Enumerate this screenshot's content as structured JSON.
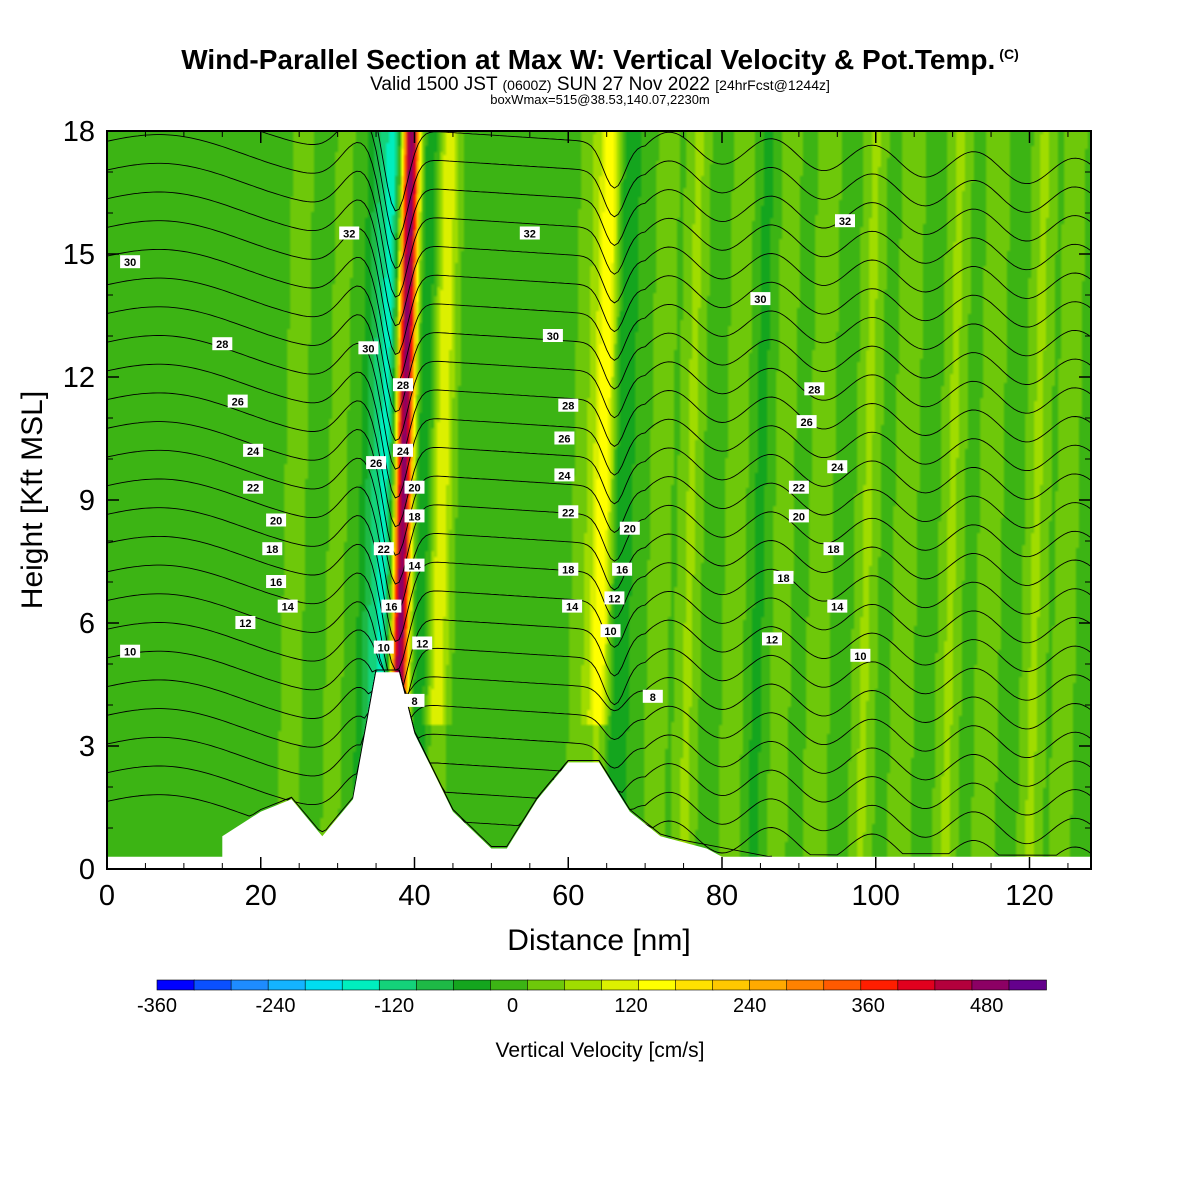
{
  "chart_data": {
    "type": "heatmap",
    "title": "Wind-Parallel Section at Max W: Vertical Velocity & Pot.Temp.",
    "copyright_mark": "(C)",
    "subtitle_a": "Valid 1500 JST",
    "subtitle_utc": "(0600Z)",
    "subtitle_b": "SUN 27 Nov 2022",
    "subtitle_fcst": "[24hrFcst@1244z]",
    "subtitle2": "boxWmax=515@38.53,140.07,2230m",
    "xlabel": "Distance [nm]",
    "ylabel": "Height [Kft MSL]",
    "xlim": [
      0,
      128
    ],
    "ylim": [
      0,
      18
    ],
    "x_ticks": [
      0,
      20,
      40,
      60,
      80,
      100,
      120
    ],
    "y_ticks": [
      0,
      3,
      6,
      9,
      12,
      15,
      18
    ],
    "colorbar": {
      "label": "Vertical Velocity [cm/s]",
      "range": [
        -360,
        540
      ],
      "tick_labels": [
        "-360",
        "-240",
        "-120",
        "0",
        "120",
        "240",
        "360",
        "480"
      ],
      "tick_values": [
        -360,
        -240,
        -120,
        0,
        120,
        240,
        360,
        480
      ],
      "colors": [
        "#0000ff",
        "#0a50ff",
        "#1e8cff",
        "#14b4ff",
        "#00dcf0",
        "#00eebe",
        "#14d27a",
        "#1eb946",
        "#14a51e",
        "#3cb414",
        "#6ec80a",
        "#a0dc00",
        "#dcf000",
        "#ffff00",
        "#ffe100",
        "#ffc800",
        "#ffaa00",
        "#ff8200",
        "#ff5a00",
        "#ff1e00",
        "#e1001e",
        "#b4003c",
        "#8c0064",
        "#64008c"
      ]
    },
    "terrain_kft": [
      [
        0,
        0.3
      ],
      [
        15,
        0.3
      ],
      [
        15,
        0.8
      ],
      [
        20,
        1.4
      ],
      [
        24,
        1.7
      ],
      [
        28,
        0.8
      ],
      [
        32,
        1.7
      ],
      [
        35,
        4.8
      ],
      [
        38,
        4.8
      ],
      [
        40,
        3.3
      ],
      [
        45,
        1.4
      ],
      [
        50,
        0.5
      ],
      [
        52,
        0.5
      ],
      [
        56,
        1.7
      ],
      [
        60,
        2.6
      ],
      [
        64,
        2.6
      ],
      [
        68,
        1.4
      ],
      [
        72,
        0.8
      ],
      [
        78,
        0.5
      ],
      [
        80,
        0.3
      ],
      [
        128,
        0.3
      ]
    ],
    "w_features": [
      {
        "x": 38.5,
        "w": 520
      },
      {
        "x": 36.5,
        "w": -150
      },
      {
        "x": 34.5,
        "w": -80
      },
      {
        "x": 41,
        "w": -60
      },
      {
        "x": 43.5,
        "w": 120
      },
      {
        "x": 64.5,
        "w": 160
      },
      {
        "x": 67,
        "w": -60
      },
      {
        "x": 62,
        "w": 40
      },
      {
        "x": 24.5,
        "w": 40
      },
      {
        "x": 30,
        "w": 30
      },
      {
        "x": 72,
        "w": 40
      },
      {
        "x": 76,
        "w": 60
      },
      {
        "x": 82,
        "w": 50
      },
      {
        "x": 85,
        "w": -30
      },
      {
        "x": 88,
        "w": 40
      },
      {
        "x": 93,
        "w": 50
      },
      {
        "x": 99,
        "w": 60
      },
      {
        "x": 104,
        "w": 50
      },
      {
        "x": 110,
        "w": 60
      },
      {
        "x": 115,
        "w": 50
      },
      {
        "x": 121,
        "w": 60
      },
      {
        "x": 125,
        "w": 40
      }
    ],
    "theta_levels": [
      8,
      10,
      12,
      14,
      16,
      18,
      20,
      22,
      24,
      26,
      28,
      30,
      32
    ],
    "theta_labels": [
      {
        "text": "30",
        "x": 3,
        "y": 14.8
      },
      {
        "text": "32",
        "x": 31.5,
        "y": 15.5
      },
      {
        "text": "28",
        "x": 15,
        "y": 12.8
      },
      {
        "text": "30",
        "x": 34,
        "y": 12.7
      },
      {
        "text": "26",
        "x": 17,
        "y": 11.4
      },
      {
        "text": "28",
        "x": 38.5,
        "y": 11.8
      },
      {
        "text": "24",
        "x": 19,
        "y": 10.2
      },
      {
        "text": "26",
        "x": 35,
        "y": 9.9
      },
      {
        "text": "24",
        "x": 38.5,
        "y": 10.2
      },
      {
        "text": "22",
        "x": 19,
        "y": 9.3
      },
      {
        "text": "20",
        "x": 40,
        "y": 9.3
      },
      {
        "text": "20",
        "x": 22,
        "y": 8.5
      },
      {
        "text": "18",
        "x": 40,
        "y": 8.6
      },
      {
        "text": "22",
        "x": 36,
        "y": 7.8
      },
      {
        "text": "18",
        "x": 21.5,
        "y": 7.8
      },
      {
        "text": "14",
        "x": 40,
        "y": 7.4
      },
      {
        "text": "16",
        "x": 22,
        "y": 7.0
      },
      {
        "text": "16",
        "x": 37,
        "y": 6.4
      },
      {
        "text": "14",
        "x": 23.5,
        "y": 6.4
      },
      {
        "text": "12",
        "x": 18,
        "y": 6.0
      },
      {
        "text": "12",
        "x": 41,
        "y": 5.5
      },
      {
        "text": "10",
        "x": 3,
        "y": 5.3
      },
      {
        "text": "10",
        "x": 36,
        "y": 5.4
      },
      {
        "text": "8",
        "x": 40,
        "y": 4.1
      },
      {
        "text": "32",
        "x": 55,
        "y": 15.5
      },
      {
        "text": "30",
        "x": 58,
        "y": 13.0
      },
      {
        "text": "28",
        "x": 60,
        "y": 11.3
      },
      {
        "text": "26",
        "x": 59.5,
        "y": 10.5
      },
      {
        "text": "24",
        "x": 59.5,
        "y": 9.6
      },
      {
        "text": "22",
        "x": 60,
        "y": 8.7
      },
      {
        "text": "20",
        "x": 68,
        "y": 8.3
      },
      {
        "text": "18",
        "x": 60,
        "y": 7.3
      },
      {
        "text": "16",
        "x": 67,
        "y": 7.3
      },
      {
        "text": "14",
        "x": 60.5,
        "y": 6.4
      },
      {
        "text": "12",
        "x": 66,
        "y": 6.6
      },
      {
        "text": "10",
        "x": 65.5,
        "y": 5.8
      },
      {
        "text": "8",
        "x": 71,
        "y": 4.2
      },
      {
        "text": "32",
        "x": 96,
        "y": 15.8
      },
      {
        "text": "30",
        "x": 85,
        "y": 13.9
      },
      {
        "text": "28",
        "x": 92,
        "y": 11.7
      },
      {
        "text": "26",
        "x": 91,
        "y": 10.9
      },
      {
        "text": "24",
        "x": 95,
        "y": 9.8
      },
      {
        "text": "22",
        "x": 90,
        "y": 9.3
      },
      {
        "text": "20",
        "x": 90,
        "y": 8.6
      },
      {
        "text": "18",
        "x": 94.5,
        "y": 7.8
      },
      {
        "text": "18",
        "x": 88,
        "y": 7.1
      },
      {
        "text": "14",
        "x": 95,
        "y": 6.4
      },
      {
        "text": "12",
        "x": 86.5,
        "y": 5.6
      },
      {
        "text": "10",
        "x": 98,
        "y": 5.2
      }
    ]
  }
}
